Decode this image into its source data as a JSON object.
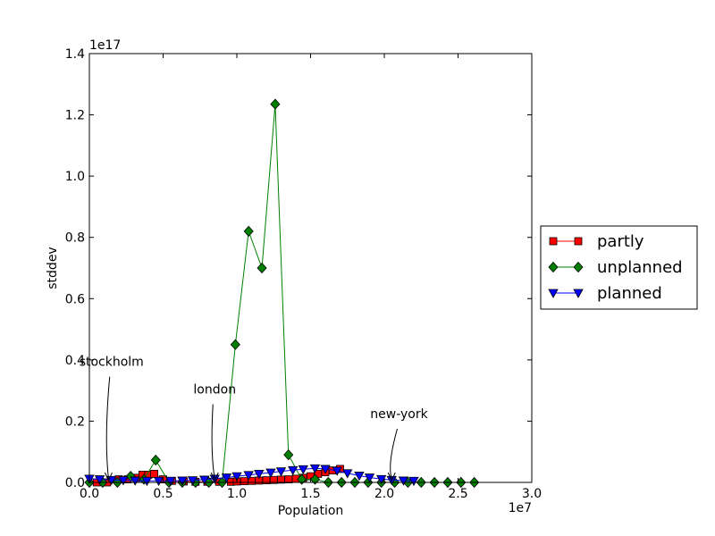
{
  "chart_data": {
    "type": "line",
    "title": "",
    "xlabel": "Population",
    "ylabel": "stddev",
    "x_exponent_label": "1e7",
    "y_exponent_label": "1e17",
    "xlim": [
      0,
      30000000
    ],
    "ylim": [
      0,
      1.4e+17
    ],
    "x_ticks": [
      0,
      5000000,
      10000000,
      15000000,
      20000000,
      25000000,
      30000000
    ],
    "x_tick_labels": [
      "0.0",
      "0.5",
      "1.0",
      "1.5",
      "2.0",
      "2.5",
      "3.0"
    ],
    "y_ticks": [
      0,
      2e+16,
      4e+16,
      6e+16,
      8e+16,
      1e+17,
      1.2e+17,
      1.4e+17
    ],
    "y_tick_labels": [
      "0.0",
      "0.2",
      "0.4",
      "0.6",
      "0.8",
      "1.0",
      "1.2",
      "1.4"
    ],
    "grid": false,
    "legend_position": "outside-right",
    "series": [
      {
        "name": "partly",
        "color": "#ff0000",
        "marker": "square",
        "points": [
          [
            500000,
            0
          ],
          [
            1200000,
            0
          ],
          [
            2000000,
            1000000000000000.0
          ],
          [
            2600000,
            1000000000000000.0
          ],
          [
            3200000,
            1500000000000000.0
          ],
          [
            3600000,
            2500000000000000.0
          ],
          [
            4000000,
            2500000000000000.0
          ],
          [
            4400000,
            2800000000000000.0
          ],
          [
            5000000,
            1000000000000000.0
          ],
          [
            5600000,
            500000000000000.0
          ],
          [
            6400000,
            300000000000000.0
          ],
          [
            7200000,
            200000000000000.0
          ],
          [
            8000000,
            200000000000000.0
          ],
          [
            8800000,
            200000000000000.0
          ],
          [
            9600000,
            200000000000000.0
          ],
          [
            10000000,
            300000000000000.0
          ],
          [
            10500000,
            400000000000000.0
          ],
          [
            11000000,
            500000000000000.0
          ],
          [
            11500000,
            600000000000000.0
          ],
          [
            12000000,
            700000000000000.0
          ],
          [
            12500000,
            800000000000000.0
          ],
          [
            13000000,
            900000000000000.0
          ],
          [
            13500000,
            1000000000000000.0
          ],
          [
            14000000,
            1200000000000000.0
          ],
          [
            14500000,
            1500000000000000.0
          ],
          [
            15000000,
            2000000000000000.0
          ],
          [
            15500000,
            2800000000000000.0
          ],
          [
            16000000,
            3300000000000000.0
          ],
          [
            16500000,
            3900000000000000.0
          ],
          [
            17000000,
            4400000000000000.0
          ]
        ]
      },
      {
        "name": "unplanned",
        "color": "#008000",
        "marker": "diamond",
        "points": [
          [
            0,
            0
          ],
          [
            900000,
            0
          ],
          [
            1900000,
            0
          ],
          [
            2800000,
            2000000000000000.0
          ],
          [
            3700000,
            1000000000000000.0
          ],
          [
            4500000,
            7300000000000000.0
          ],
          [
            5400000,
            0
          ],
          [
            6300000,
            0
          ],
          [
            7200000,
            0
          ],
          [
            8100000,
            0
          ],
          [
            9000000,
            0
          ],
          [
            9900000,
            4.5e+16
          ],
          [
            10800000,
            8.2e+16
          ],
          [
            11700000,
            7e+16
          ],
          [
            12600000,
            1.235e+17
          ],
          [
            13500000,
            9000000000000000.0
          ],
          [
            14400000,
            1000000000000000.0
          ],
          [
            15300000,
            1000000000000000.0
          ],
          [
            16200000,
            0
          ],
          [
            17100000,
            0
          ],
          [
            18000000,
            0
          ],
          [
            18900000,
            0
          ],
          [
            19800000,
            0
          ],
          [
            20700000,
            0
          ],
          [
            21600000,
            0
          ],
          [
            22500000,
            0
          ],
          [
            23400000,
            0
          ],
          [
            24300000,
            0
          ],
          [
            25200000,
            0
          ],
          [
            26100000,
            0
          ]
        ]
      },
      {
        "name": "planned",
        "color": "#0000ff",
        "marker": "triangle-down",
        "points": [
          [
            0,
            1200000000000000.0
          ],
          [
            700000,
            1000000000000000.0
          ],
          [
            1500000,
            800000000000000.0
          ],
          [
            2300000,
            700000000000000.0
          ],
          [
            3100000,
            600000000000000.0
          ],
          [
            3900000,
            500000000000000.0
          ],
          [
            4700000,
            500000000000000.0
          ],
          [
            5500000,
            500000000000000.0
          ],
          [
            6300000,
            600000000000000.0
          ],
          [
            7000000,
            700000000000000.0
          ],
          [
            7800000,
            900000000000000.0
          ],
          [
            8500000,
            1200000000000000.0
          ],
          [
            9300000,
            1600000000000000.0
          ],
          [
            10000000,
            2000000000000000.0
          ],
          [
            10800000,
            2400000000000000.0
          ],
          [
            11500000,
            2800000000000000.0
          ],
          [
            12300000,
            3200000000000000.0
          ],
          [
            13000000,
            3600000000000000.0
          ],
          [
            13800000,
            4000000000000000.0
          ],
          [
            14500000,
            4300000000000000.0
          ],
          [
            15300000,
            4600000000000000.0
          ],
          [
            16000000,
            4400000000000000.0
          ],
          [
            16800000,
            3800000000000000.0
          ],
          [
            17500000,
            3000000000000000.0
          ],
          [
            18300000,
            2200000000000000.0
          ],
          [
            19000000,
            1600000000000000.0
          ],
          [
            19800000,
            1100000000000000.0
          ],
          [
            20500000,
            800000000000000.0
          ],
          [
            21300000,
            600000000000000.0
          ],
          [
            22000000,
            500000000000000.0
          ]
        ]
      }
    ],
    "annotations": [
      {
        "text": "stockholm",
        "x": 1300000,
        "y": 0,
        "text_x": 1500000,
        "text_y": 3.8e+16
      },
      {
        "text": "london",
        "x": 8500000,
        "y": 0,
        "text_x": 8500000,
        "text_y": 2.9e+16
      },
      {
        "text": "new-york",
        "x": 20500000,
        "y": 0,
        "text_x": 21000000,
        "text_y": 2.1e+16
      }
    ]
  }
}
